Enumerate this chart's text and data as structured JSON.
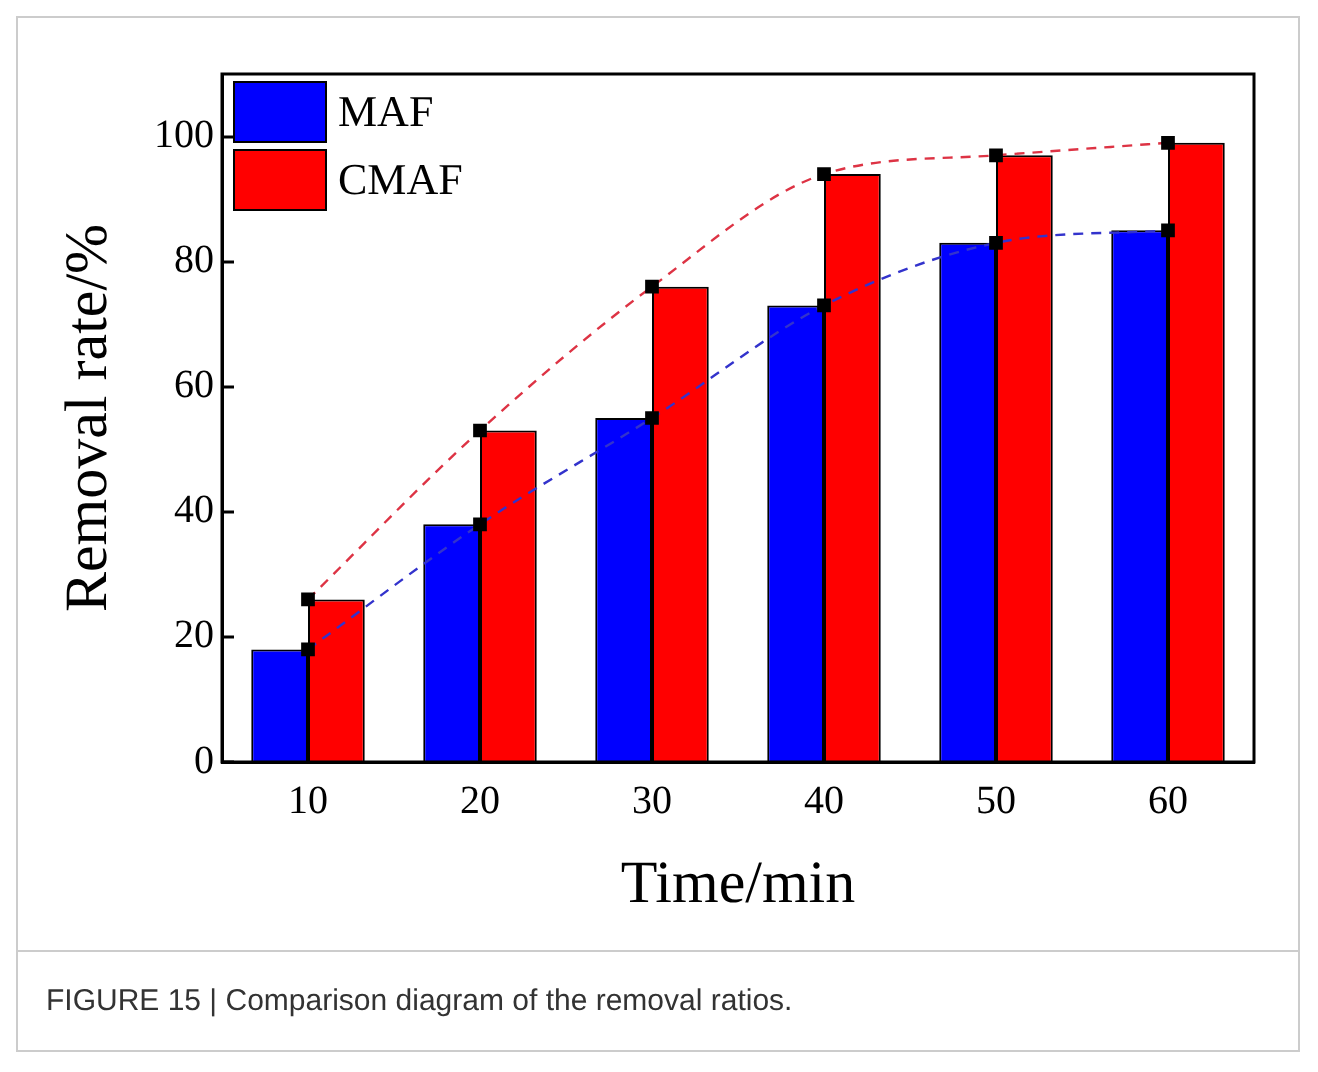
{
  "chart_data": {
    "type": "bar",
    "xlabel": "Time/min",
    "ylabel": "Removal rate/%",
    "categories": [
      "10",
      "20",
      "30",
      "40",
      "50",
      "60"
    ],
    "series": [
      {
        "name": "MAF",
        "color": "#0000ff",
        "values": [
          18,
          38,
          55,
          73,
          83,
          85
        ]
      },
      {
        "name": "CMAF",
        "color": "#ff0000",
        "values": [
          26,
          53,
          76,
          94,
          97,
          99
        ]
      },
      {
        "type": "line",
        "color": "#3333cc",
        "values": [
          18,
          38,
          55,
          73,
          83,
          85
        ],
        "line_style": "dashed",
        "marker": "square"
      },
      {
        "type": "line",
        "color": "#dd3344",
        "values": [
          26,
          53,
          76,
          94,
          97,
          99
        ],
        "line_style": "dashed",
        "marker": "square"
      }
    ],
    "ylim": [
      0,
      110
    ],
    "yticks": [
      0,
      20,
      40,
      60,
      80,
      100
    ],
    "grid": false,
    "legend": "top left",
    "annotations": [
      "FIGURE 15 | Comparison diagram of the removal ratios."
    ]
  }
}
